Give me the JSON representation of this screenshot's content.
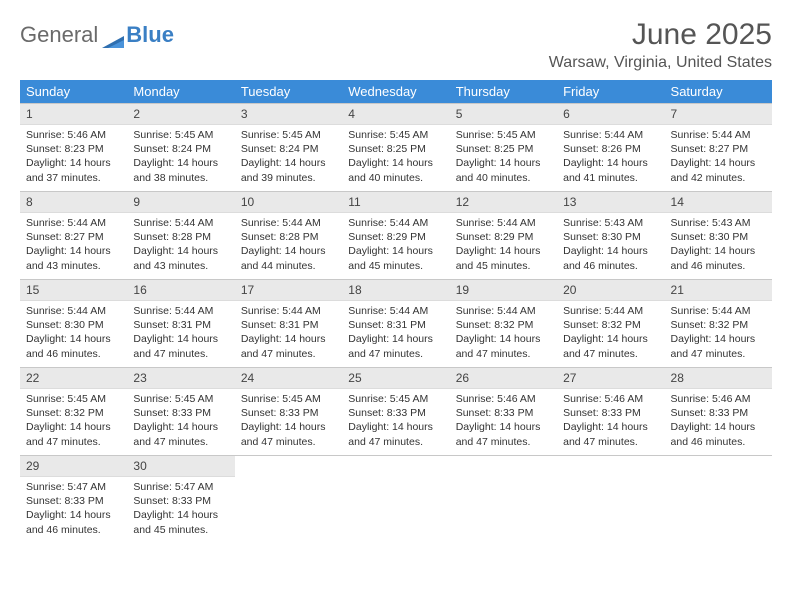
{
  "brand": {
    "part1": "General",
    "part2": "Blue"
  },
  "title": "June 2025",
  "location": "Warsaw, Virginia, United States",
  "style": {
    "header_bg": "#3a8bd8",
    "header_fg": "#ffffff",
    "daynum_bg": "#e9e9e9",
    "border_color": "#c8c8c8",
    "text_color": "#333333",
    "title_color": "#555555",
    "page_bg": "#ffffff",
    "font_family": "Arial",
    "title_fontsize": 30,
    "header_fontsize": 13,
    "cell_fontsize": 10.5
  },
  "weekdays": [
    "Sunday",
    "Monday",
    "Tuesday",
    "Wednesday",
    "Thursday",
    "Friday",
    "Saturday"
  ],
  "days": [
    {
      "n": "1",
      "sunrise": "5:46 AM",
      "sunset": "8:23 PM",
      "daylight": "14 hours and 37 minutes."
    },
    {
      "n": "2",
      "sunrise": "5:45 AM",
      "sunset": "8:24 PM",
      "daylight": "14 hours and 38 minutes."
    },
    {
      "n": "3",
      "sunrise": "5:45 AM",
      "sunset": "8:24 PM",
      "daylight": "14 hours and 39 minutes."
    },
    {
      "n": "4",
      "sunrise": "5:45 AM",
      "sunset": "8:25 PM",
      "daylight": "14 hours and 40 minutes."
    },
    {
      "n": "5",
      "sunrise": "5:45 AM",
      "sunset": "8:25 PM",
      "daylight": "14 hours and 40 minutes."
    },
    {
      "n": "6",
      "sunrise": "5:44 AM",
      "sunset": "8:26 PM",
      "daylight": "14 hours and 41 minutes."
    },
    {
      "n": "7",
      "sunrise": "5:44 AM",
      "sunset": "8:27 PM",
      "daylight": "14 hours and 42 minutes."
    },
    {
      "n": "8",
      "sunrise": "5:44 AM",
      "sunset": "8:27 PM",
      "daylight": "14 hours and 43 minutes."
    },
    {
      "n": "9",
      "sunrise": "5:44 AM",
      "sunset": "8:28 PM",
      "daylight": "14 hours and 43 minutes."
    },
    {
      "n": "10",
      "sunrise": "5:44 AM",
      "sunset": "8:28 PM",
      "daylight": "14 hours and 44 minutes."
    },
    {
      "n": "11",
      "sunrise": "5:44 AM",
      "sunset": "8:29 PM",
      "daylight": "14 hours and 45 minutes."
    },
    {
      "n": "12",
      "sunrise": "5:44 AM",
      "sunset": "8:29 PM",
      "daylight": "14 hours and 45 minutes."
    },
    {
      "n": "13",
      "sunrise": "5:43 AM",
      "sunset": "8:30 PM",
      "daylight": "14 hours and 46 minutes."
    },
    {
      "n": "14",
      "sunrise": "5:43 AM",
      "sunset": "8:30 PM",
      "daylight": "14 hours and 46 minutes."
    },
    {
      "n": "15",
      "sunrise": "5:44 AM",
      "sunset": "8:30 PM",
      "daylight": "14 hours and 46 minutes."
    },
    {
      "n": "16",
      "sunrise": "5:44 AM",
      "sunset": "8:31 PM",
      "daylight": "14 hours and 47 minutes."
    },
    {
      "n": "17",
      "sunrise": "5:44 AM",
      "sunset": "8:31 PM",
      "daylight": "14 hours and 47 minutes."
    },
    {
      "n": "18",
      "sunrise": "5:44 AM",
      "sunset": "8:31 PM",
      "daylight": "14 hours and 47 minutes."
    },
    {
      "n": "19",
      "sunrise": "5:44 AM",
      "sunset": "8:32 PM",
      "daylight": "14 hours and 47 minutes."
    },
    {
      "n": "20",
      "sunrise": "5:44 AM",
      "sunset": "8:32 PM",
      "daylight": "14 hours and 47 minutes."
    },
    {
      "n": "21",
      "sunrise": "5:44 AM",
      "sunset": "8:32 PM",
      "daylight": "14 hours and 47 minutes."
    },
    {
      "n": "22",
      "sunrise": "5:45 AM",
      "sunset": "8:32 PM",
      "daylight": "14 hours and 47 minutes."
    },
    {
      "n": "23",
      "sunrise": "5:45 AM",
      "sunset": "8:33 PM",
      "daylight": "14 hours and 47 minutes."
    },
    {
      "n": "24",
      "sunrise": "5:45 AM",
      "sunset": "8:33 PM",
      "daylight": "14 hours and 47 minutes."
    },
    {
      "n": "25",
      "sunrise": "5:45 AM",
      "sunset": "8:33 PM",
      "daylight": "14 hours and 47 minutes."
    },
    {
      "n": "26",
      "sunrise": "5:46 AM",
      "sunset": "8:33 PM",
      "daylight": "14 hours and 47 minutes."
    },
    {
      "n": "27",
      "sunrise": "5:46 AM",
      "sunset": "8:33 PM",
      "daylight": "14 hours and 47 minutes."
    },
    {
      "n": "28",
      "sunrise": "5:46 AM",
      "sunset": "8:33 PM",
      "daylight": "14 hours and 46 minutes."
    },
    {
      "n": "29",
      "sunrise": "5:47 AM",
      "sunset": "8:33 PM",
      "daylight": "14 hours and 46 minutes."
    },
    {
      "n": "30",
      "sunrise": "5:47 AM",
      "sunset": "8:33 PM",
      "daylight": "14 hours and 45 minutes."
    }
  ],
  "labels": {
    "sunrise": "Sunrise:",
    "sunset": "Sunset:",
    "daylight": "Daylight:"
  }
}
